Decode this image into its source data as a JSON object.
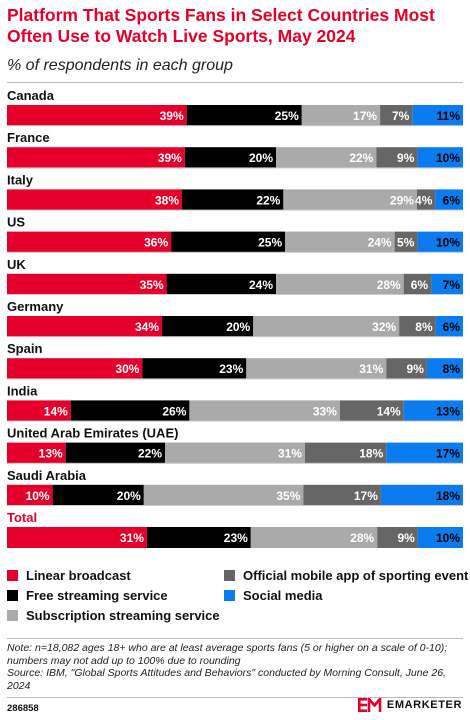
{
  "header": {
    "title": "Platform That Sports Fans in Select Countries Most Often Use to Watch Live Sports, May 2024",
    "subtitle": "% of respondents in each group"
  },
  "colors": {
    "linear": "#e4002b",
    "free": "#000000",
    "subscription": "#aaaaaa",
    "official": "#666666",
    "social": "#0a7cf0",
    "accent": "#e4002b"
  },
  "chart_data": {
    "type": "bar",
    "stacked": true,
    "orientation": "horizontal",
    "categories": [
      "Canada",
      "France",
      "Italy",
      "US",
      "UK",
      "Germany",
      "Spain",
      "India",
      "United Arab Emirates (UAE)",
      "Saudi Arabia",
      "Total"
    ],
    "series": [
      {
        "name": "Linear broadcast",
        "values": [
          39,
          39,
          38,
          36,
          35,
          34,
          30,
          14,
          13,
          10,
          31
        ]
      },
      {
        "name": "Free streaming service",
        "values": [
          25,
          20,
          22,
          25,
          24,
          20,
          23,
          26,
          22,
          20,
          23
        ]
      },
      {
        "name": "Subscription streaming service",
        "values": [
          17,
          22,
          29,
          24,
          28,
          32,
          31,
          33,
          31,
          35,
          28
        ]
      },
      {
        "name": "Official mobile app of sporting event",
        "values": [
          7,
          9,
          4,
          5,
          6,
          8,
          9,
          14,
          18,
          17,
          9
        ]
      },
      {
        "name": "Social media",
        "values": [
          11,
          10,
          6,
          10,
          7,
          6,
          8,
          13,
          17,
          18,
          10
        ]
      }
    ],
    "value_suffix": "%",
    "legend_position": "bottom"
  },
  "legend": {
    "items": [
      {
        "label": "Linear broadcast",
        "color": "#e4002b"
      },
      {
        "label": "Free streaming service",
        "color": "#000000"
      },
      {
        "label": "Subscription streaming service",
        "color": "#aaaaaa"
      },
      {
        "label": "Official mobile app of sporting event",
        "color": "#666666"
      },
      {
        "label": "Social media",
        "color": "#0a7cf0"
      }
    ]
  },
  "footer": {
    "note": "Note: n=18,082 ages 18+ who are at least average sports fans (5 or higher on a scale of 0-10); numbers may not add up to 100% due to rounding",
    "source": "Source: IBM, \"Global Sports Attitudes and Behaviors\" conducted by Morning Consult, June 26, 2024",
    "chart_id": "286858",
    "brand": "EMARKETER"
  }
}
